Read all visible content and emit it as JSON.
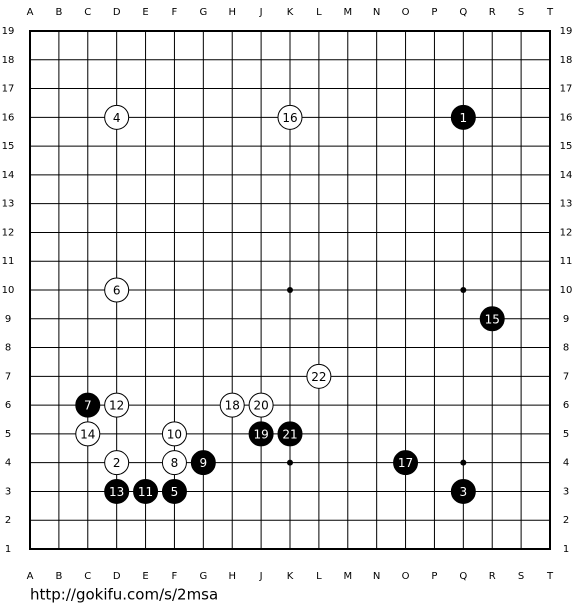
{
  "board": {
    "columns": [
      "A",
      "B",
      "C",
      "D",
      "E",
      "F",
      "G",
      "H",
      "J",
      "K",
      "L",
      "M",
      "N",
      "O",
      "P",
      "Q",
      "R",
      "S",
      "T"
    ],
    "rows": [
      19,
      18,
      17,
      16,
      15,
      14,
      13,
      12,
      11,
      10,
      9,
      8,
      7,
      6,
      5,
      4,
      3,
      2,
      1
    ],
    "moves": [
      {
        "number": 1,
        "color": "black",
        "col": "Q",
        "row": 16
      },
      {
        "number": 2,
        "color": "white",
        "col": "D",
        "row": 4
      },
      {
        "number": 3,
        "color": "black",
        "col": "Q",
        "row": 3
      },
      {
        "number": 4,
        "color": "white",
        "col": "D",
        "row": 16
      },
      {
        "number": 5,
        "color": "black",
        "col": "F",
        "row": 3
      },
      {
        "number": 6,
        "color": "white",
        "col": "D",
        "row": 10
      },
      {
        "number": 7,
        "color": "black",
        "col": "C",
        "row": 6
      },
      {
        "number": 8,
        "color": "white",
        "col": "F",
        "row": 4
      },
      {
        "number": 9,
        "color": "black",
        "col": "G",
        "row": 4
      },
      {
        "number": 10,
        "color": "white",
        "col": "F",
        "row": 5
      },
      {
        "number": 11,
        "color": "black",
        "col": "E",
        "row": 3
      },
      {
        "number": 12,
        "color": "white",
        "col": "D",
        "row": 6
      },
      {
        "number": 13,
        "color": "black",
        "col": "D",
        "row": 3
      },
      {
        "number": 14,
        "color": "white",
        "col": "C",
        "row": 5
      },
      {
        "number": 15,
        "color": "black",
        "col": "R",
        "row": 9
      },
      {
        "number": 16,
        "color": "white",
        "col": "K",
        "row": 16
      },
      {
        "number": 17,
        "color": "black",
        "col": "O",
        "row": 4
      },
      {
        "number": 18,
        "color": "white",
        "col": "H",
        "row": 6
      },
      {
        "number": 19,
        "color": "black",
        "col": "J",
        "row": 5
      },
      {
        "number": 20,
        "color": "white",
        "col": "J",
        "row": 6
      },
      {
        "number": 21,
        "color": "black",
        "col": "K",
        "row": 5
      },
      {
        "number": 22,
        "color": "white",
        "col": "L",
        "row": 7
      }
    ]
  },
  "footer": {
    "url": "http://gokifu.com/s/2msa"
  }
}
